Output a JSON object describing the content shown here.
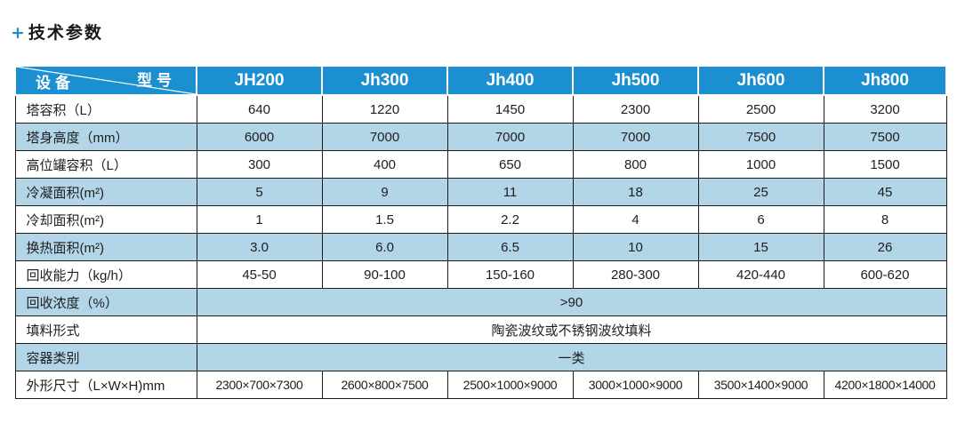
{
  "heading": {
    "plus": "+",
    "title": "技术参数"
  },
  "table": {
    "corner": {
      "left": "设备",
      "right": "型号"
    },
    "models": [
      "JH200",
      "Jh300",
      "Jh400",
      "Jh500",
      "Jh600",
      "Jh800"
    ],
    "rows": [
      {
        "label": "塔容积（L）",
        "values": [
          "640",
          "1220",
          "1450",
          "2300",
          "2500",
          "3200"
        ]
      },
      {
        "label": "塔身高度（mm）",
        "values": [
          "6000",
          "7000",
          "7000",
          "7000",
          "7500",
          "7500"
        ]
      },
      {
        "label": "高位罐容积（L）",
        "values": [
          "300",
          "400",
          "650",
          "800",
          "1000",
          "1500"
        ]
      },
      {
        "label": "冷凝面积(m²)",
        "values": [
          "5",
          "9",
          "11",
          "18",
          "25",
          "45"
        ]
      },
      {
        "label": "冷却面积(m²)",
        "values": [
          "1",
          "1.5",
          "2.2",
          "4",
          "6",
          "8"
        ]
      },
      {
        "label": "换热面积(m²)",
        "values": [
          "3.0",
          "6.0",
          "6.5",
          "10",
          "15",
          "26"
        ]
      },
      {
        "label": "回收能力（kg/h）",
        "values": [
          "45-50",
          "90-100",
          "150-160",
          "280-300",
          "420-440",
          "600-620"
        ]
      }
    ],
    "merged_rows": [
      {
        "label": "回收浓度（%）",
        "value": ">90"
      },
      {
        "label": "填料形式",
        "value": "陶瓷波纹或不锈钢波纹填料"
      },
      {
        "label": "容器类别",
        "value": "一类"
      }
    ],
    "dimension_row": {
      "label": "外形尺寸（L×W×H)mm",
      "values": [
        "2300×700×7300",
        "2600×800×7500",
        "2500×1000×9000",
        "3000×1000×9000",
        "3500×1400×9000",
        "4200×1800×14000"
      ]
    }
  },
  "colors": {
    "accent": "#1b8fd0",
    "band": "#b2d5e8",
    "border": "#1c1c1c"
  }
}
